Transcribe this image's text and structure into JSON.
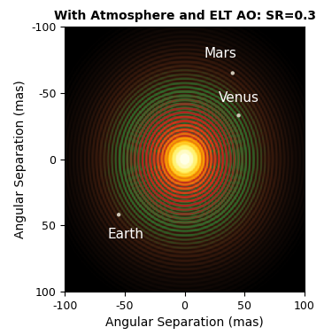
{
  "chart_data": {
    "type": "scatter",
    "title": "With Atmosphere and ELT AO: SR=0.3",
    "x_label": "Angular Separation (mas)",
    "y_label": "Angular Separation (mas)",
    "x": [
      0,
      40,
      45,
      -55
    ],
    "y": [
      0,
      -65,
      -33,
      42
    ],
    "labels": [
      null,
      "Mars",
      "Venus",
      "Earth"
    ],
    "xlim": [
      -100,
      100
    ],
    "ylim": [
      100,
      -100
    ],
    "xticks": [
      -100,
      -50,
      0,
      50,
      100
    ],
    "yticks": [
      -100,
      -50,
      0,
      50,
      100
    ],
    "grid": false
  }
}
